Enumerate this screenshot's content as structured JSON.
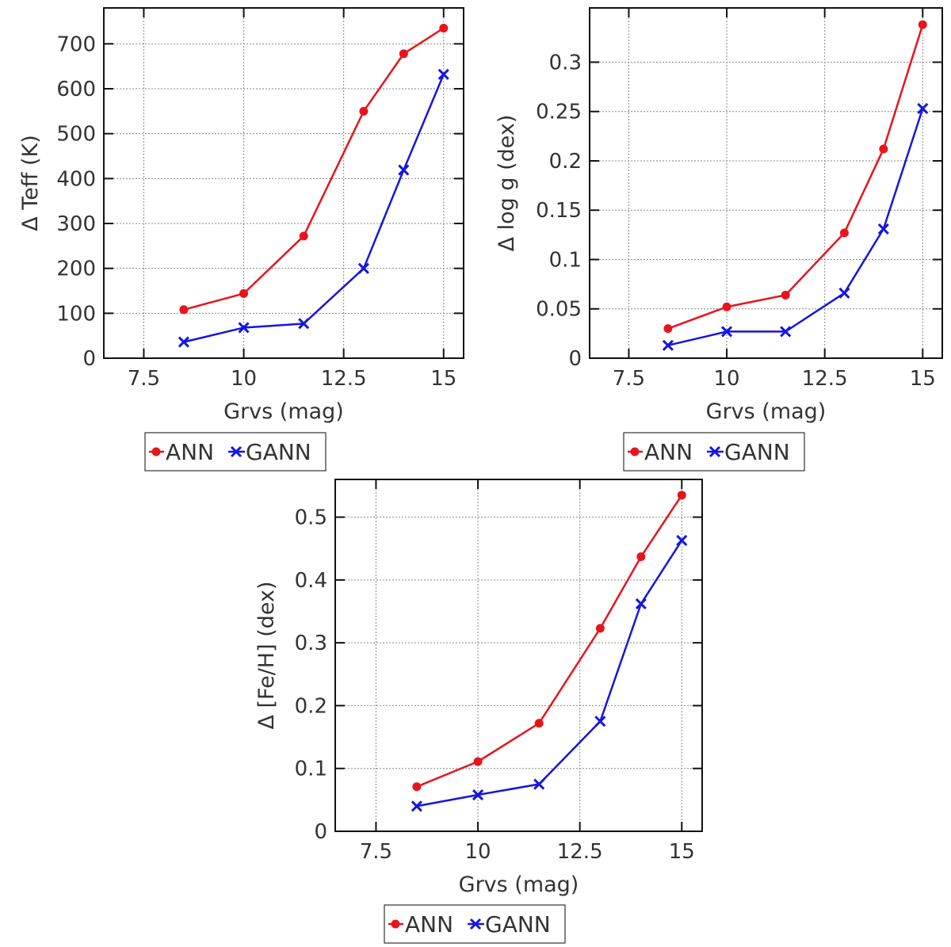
{
  "figure": {
    "panel_count": 3
  },
  "chart_data": [
    {
      "type": "line",
      "title": "",
      "xlabel": "Grvs (mag)",
      "ylabel": "Δ Teff (K)",
      "xlim": [
        6.5,
        15.5
      ],
      "ylim": [
        0,
        780
      ],
      "xticks": [
        7.5,
        10,
        12.5,
        15
      ],
      "xtick_labels": [
        "7.5",
        "10",
        "12.5",
        "15"
      ],
      "yticks": [
        0,
        100,
        200,
        300,
        400,
        500,
        600,
        700
      ],
      "ytick_labels": [
        "0",
        "100",
        "200",
        "300",
        "400",
        "500",
        "600",
        "700"
      ],
      "x": [
        8.5,
        10,
        11.5,
        13,
        14,
        15
      ],
      "series": [
        {
          "name": "ANN",
          "color": "#e8141c",
          "marker": "circle",
          "values": [
            108,
            144,
            272,
            550,
            678,
            735
          ]
        },
        {
          "name": "GANN",
          "color": "#1515e0",
          "marker": "x",
          "values": [
            36,
            68,
            77,
            200,
            419,
            632
          ]
        }
      ],
      "legend": {
        "placement": "bottom",
        "entries": [
          "ANN",
          "GANN"
        ]
      },
      "grid": true
    },
    {
      "type": "line",
      "title": "",
      "xlabel": "Grvs (mag)",
      "ylabel": "Δ log g (dex)",
      "xlim": [
        6.5,
        15.5
      ],
      "ylim": [
        0,
        0.355
      ],
      "xticks": [
        7.5,
        10,
        12.5,
        15
      ],
      "xtick_labels": [
        "7.5",
        "10",
        "12.5",
        "15"
      ],
      "yticks": [
        0,
        0.05,
        0.1,
        0.15,
        0.2,
        0.25,
        0.3
      ],
      "ytick_labels": [
        "0",
        "0.05",
        "0.1",
        "0.15",
        "0.2",
        "0.25",
        "0.3"
      ],
      "x": [
        8.5,
        10,
        11.5,
        13,
        14,
        15
      ],
      "series": [
        {
          "name": "ANN",
          "color": "#e8141c",
          "marker": "circle",
          "values": [
            0.03,
            0.052,
            0.064,
            0.127,
            0.212,
            0.338
          ]
        },
        {
          "name": "GANN",
          "color": "#1515e0",
          "marker": "x",
          "values": [
            0.013,
            0.027,
            0.027,
            0.066,
            0.131,
            0.253
          ]
        }
      ],
      "legend": {
        "placement": "bottom",
        "entries": [
          "ANN",
          "GANN"
        ]
      },
      "grid": true
    },
    {
      "type": "line",
      "title": "",
      "xlabel": "Grvs (mag)",
      "ylabel": "Δ [Fe/H] (dex)",
      "xlim": [
        6.5,
        15.5
      ],
      "ylim": [
        0,
        0.56
      ],
      "xticks": [
        7.5,
        10,
        12.5,
        15
      ],
      "xtick_labels": [
        "7.5",
        "10",
        "12.5",
        "15"
      ],
      "yticks": [
        0,
        0.1,
        0.2,
        0.3,
        0.4,
        0.5
      ],
      "ytick_labels": [
        "0",
        "0.1",
        "0.2",
        "0.3",
        "0.4",
        "0.5"
      ],
      "x": [
        8.5,
        10,
        11.5,
        13,
        14,
        15
      ],
      "series": [
        {
          "name": "ANN",
          "color": "#e8141c",
          "marker": "circle",
          "values": [
            0.071,
            0.111,
            0.172,
            0.323,
            0.437,
            0.535
          ]
        },
        {
          "name": "GANN",
          "color": "#1515e0",
          "marker": "x",
          "values": [
            0.04,
            0.058,
            0.075,
            0.175,
            0.362,
            0.463
          ]
        }
      ],
      "legend": {
        "placement": "bottom",
        "entries": [
          "ANN",
          "GANN"
        ]
      },
      "grid": true
    }
  ]
}
